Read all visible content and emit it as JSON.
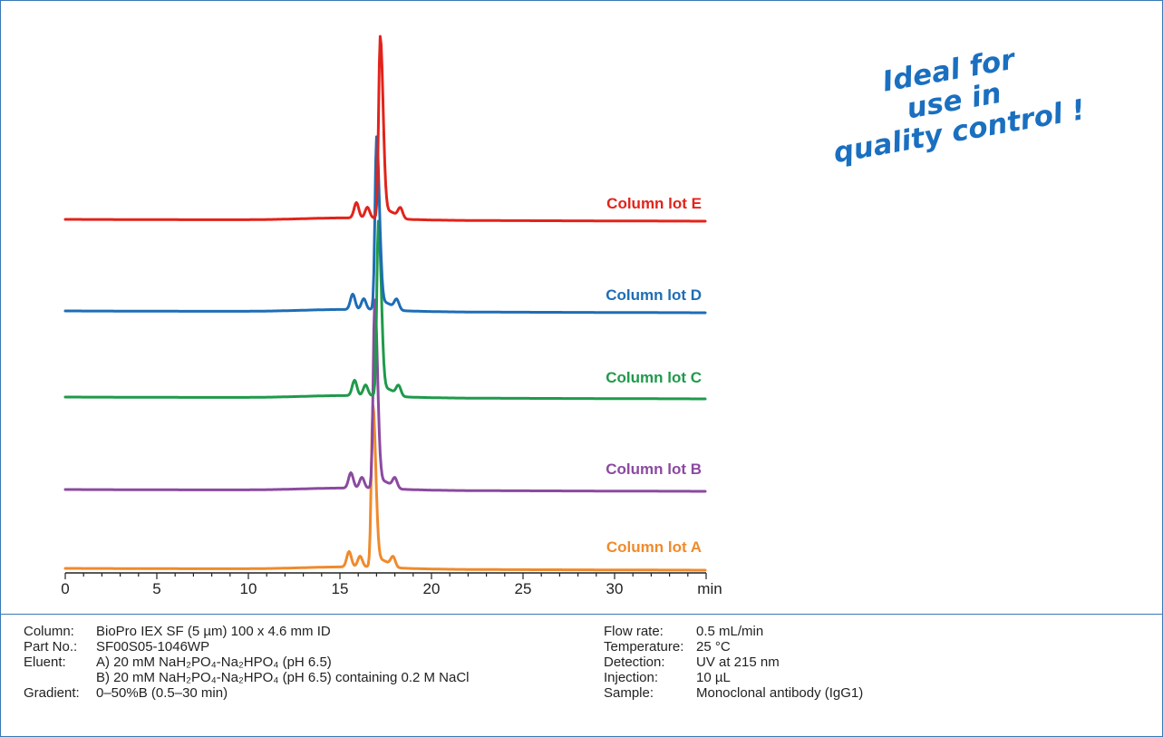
{
  "promo": {
    "line1": "Ideal for",
    "line2": "use in",
    "line3": "quality control !",
    "color": "#1a6fc0"
  },
  "chart_data": {
    "type": "line",
    "xlabel": "min",
    "xlim": [
      0,
      35
    ],
    "x_ticks": [
      0,
      5,
      10,
      15,
      20,
      25,
      30
    ],
    "x_tick_labels": [
      "0",
      "5",
      "10",
      "15",
      "20",
      "25",
      "30"
    ],
    "series": [
      {
        "name": "Column lot A",
        "color": "#f08a2c",
        "main_peak_min": 16.8,
        "side_peaks_min": [
          15.5,
          16.1,
          17.9
        ]
      },
      {
        "name": "Column lot B",
        "color": "#8b4aa0",
        "main_peak_min": 16.9,
        "side_peaks_min": [
          15.6,
          16.2,
          18.0
        ]
      },
      {
        "name": "Column lot C",
        "color": "#1f9a4a",
        "main_peak_min": 17.1,
        "side_peaks_min": [
          15.8,
          16.4,
          18.2
        ]
      },
      {
        "name": "Column lot D",
        "color": "#1e6db5",
        "main_peak_min": 17.0,
        "side_peaks_min": [
          15.7,
          16.3,
          18.1
        ]
      },
      {
        "name": "Column lot E",
        "color": "#e2231a",
        "main_peak_min": 17.2,
        "side_peaks_min": [
          15.9,
          16.5,
          18.3
        ]
      }
    ]
  },
  "conditions": {
    "left": [
      {
        "key": "Column:",
        "value": "BioPro IEX SF (5 µm) 100 x 4.6 mm ID"
      },
      {
        "key": "Part No.:",
        "value": "SF00S05-1046WP"
      },
      {
        "key": "Eluent:",
        "value": "A) 20 mM NaH₂PO₄-Na₂HPO₄ (pH 6.5)"
      },
      {
        "key": "",
        "value": "B) 20 mM NaH₂PO₄-Na₂HPO₄ (pH 6.5) containing 0.2 M NaCl"
      },
      {
        "key": "Gradient:",
        "value": "0–50%B (0.5–30 min)"
      }
    ],
    "right": [
      {
        "key": "Flow rate:",
        "value": "0.5 mL/min"
      },
      {
        "key": "Temperature:",
        "value": "25 °C"
      },
      {
        "key": "Detection:",
        "value": "UV at 215 nm"
      },
      {
        "key": "Injection:",
        "value": "10 µL"
      },
      {
        "key": "Sample:",
        "value": "Monoclonal antibody (IgG1)"
      }
    ]
  }
}
